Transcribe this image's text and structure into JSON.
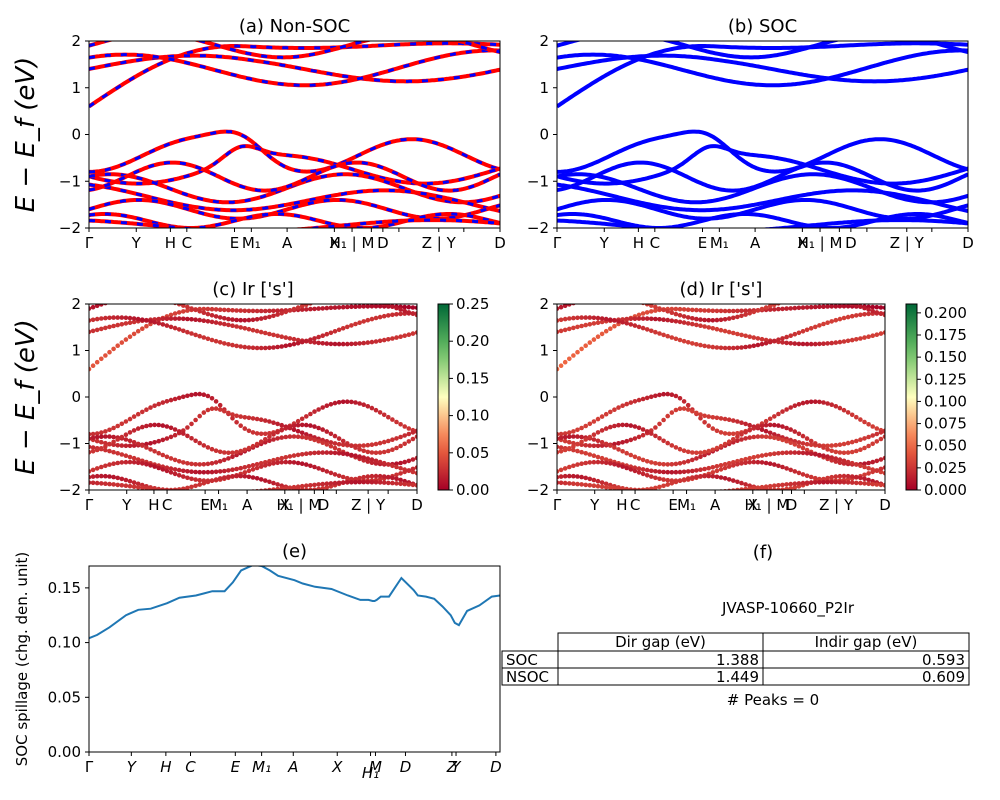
{
  "chart_data": [
    {
      "id": "a",
      "type": "line",
      "title": "(a) Non-SOC",
      "ylabel": "E − E_f (eV)",
      "ylim": [
        -2,
        2
      ],
      "y_ticks": [
        "−2",
        "−1",
        "0",
        "1",
        "2"
      ],
      "k_labels": [
        "Γ",
        "Y",
        "H",
        "C",
        "E",
        "M₁",
        "A",
        "X",
        "H₁",
        "|",
        "M",
        "D",
        "Z",
        "|",
        "Y",
        "D"
      ],
      "style": "red-blue-dashed"
    },
    {
      "id": "b",
      "type": "line",
      "title": "(b) SOC",
      "ylim": [
        -2,
        2
      ],
      "y_ticks": [
        "−2",
        "−1",
        "0",
        "1",
        "2"
      ],
      "k_labels": [
        "Γ",
        "Y",
        "H",
        "C",
        "E",
        "M₁",
        "A",
        "X",
        "H₁",
        "|",
        "M",
        "D",
        "Z",
        "|",
        "Y",
        "D"
      ],
      "style": "blue"
    },
    {
      "id": "c",
      "type": "scatter",
      "title": "(c)  Ir ['s']",
      "ylabel": "E − E_f (eV)",
      "ylim": [
        -2,
        2
      ],
      "y_ticks": [
        "−2",
        "−1",
        "0",
        "1",
        "2"
      ],
      "k_labels": [
        "Γ",
        "Y",
        "H",
        "C",
        "E",
        "M₁",
        "A",
        "X",
        "H₁",
        "|",
        "M",
        "D",
        "Z",
        "|",
        "Y",
        "D"
      ],
      "colorbar": {
        "min": 0.0,
        "max": 0.25,
        "ticks": [
          "0.00",
          "0.05",
          "0.10",
          "0.15",
          "0.20",
          "0.25"
        ]
      }
    },
    {
      "id": "d",
      "type": "scatter",
      "title": "(d) Ir ['s']",
      "ylim": [
        -2,
        2
      ],
      "y_ticks": [
        "−2",
        "−1",
        "0",
        "1",
        "2"
      ],
      "k_labels": [
        "Γ",
        "Y",
        "H",
        "C",
        "E",
        "M₁",
        "A",
        "X",
        "H₁",
        "|",
        "M",
        "D",
        "Z",
        "|",
        "Y",
        "D"
      ],
      "colorbar": {
        "min": 0.0,
        "max": 0.21,
        "ticks": [
          "0.000",
          "0.025",
          "0.050",
          "0.075",
          "0.100",
          "0.125",
          "0.150",
          "0.175",
          "0.200"
        ]
      }
    },
    {
      "id": "e",
      "type": "line",
      "title": "(e)",
      "ylabel": "SOC spillage (chg. den. unit)",
      "ylim": [
        0,
        0.17
      ],
      "y_ticks": [
        "0.00",
        "0.05",
        "0.10",
        "0.15"
      ],
      "k_labels": [
        "Γ",
        "Y",
        "H",
        "C",
        "E",
        "M₁",
        "A",
        "X",
        "H₁",
        "M",
        "D",
        "Z",
        "Y",
        "D"
      ],
      "x": [
        0,
        0.02,
        0.05,
        0.09,
        0.12,
        0.15,
        0.19,
        0.22,
        0.26,
        0.28,
        0.3,
        0.32,
        0.33,
        0.35,
        0.37,
        0.4,
        0.42,
        0.44,
        0.46,
        0.5,
        0.52,
        0.55,
        0.57,
        0.59,
        0.63,
        0.66,
        0.68,
        0.69,
        0.695,
        0.7,
        0.71,
        0.73,
        0.76,
        0.79,
        0.8,
        0.82,
        0.84,
        0.86,
        0.88,
        0.89,
        0.9,
        0.92,
        0.95,
        0.98,
        1.0
      ],
      "y": [
        0.104,
        0.107,
        0.114,
        0.125,
        0.13,
        0.131,
        0.136,
        0.141,
        0.143,
        0.145,
        0.147,
        0.147,
        0.147,
        0.155,
        0.166,
        0.171,
        0.17,
        0.166,
        0.161,
        0.157,
        0.154,
        0.151,
        0.15,
        0.149,
        0.143,
        0.139,
        0.139,
        0.138,
        0.138,
        0.139,
        0.142,
        0.142,
        0.159,
        0.148,
        0.143,
        0.142,
        0.14,
        0.133,
        0.125,
        0.118,
        0.116,
        0.129,
        0.134,
        0.142,
        0.143
      ]
    }
  ],
  "table": {
    "title": "(f)",
    "subtitle": "JVASP-10660_P2Ir",
    "headers": [
      "",
      "Dir gap (eV)",
      "Indir gap (eV)"
    ],
    "rows": [
      [
        "SOC",
        "1.388",
        "0.593"
      ],
      [
        "NSOC",
        "1.449",
        "0.609"
      ]
    ],
    "footer": "# Peaks = 0"
  }
}
